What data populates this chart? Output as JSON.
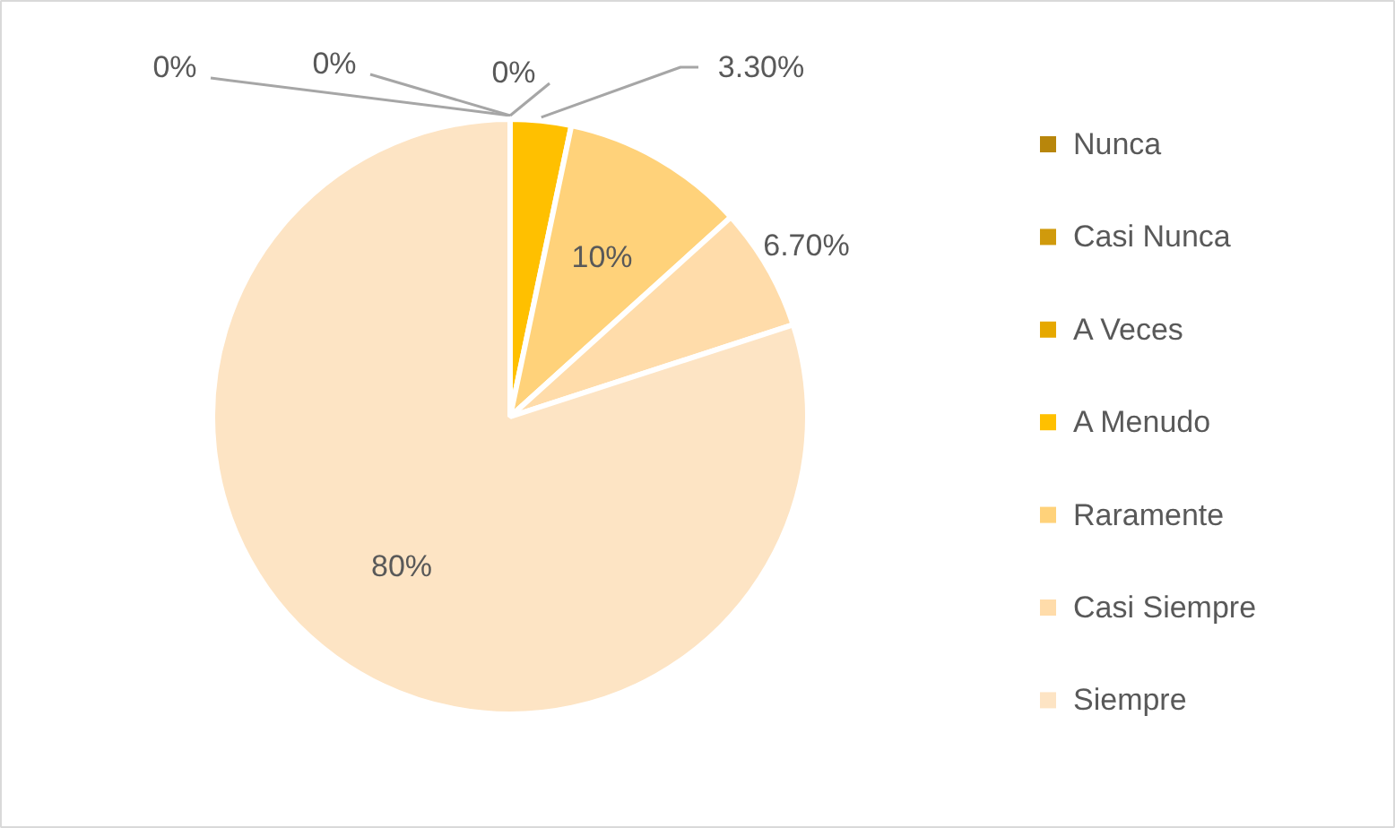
{
  "chart_data": {
    "type": "pie",
    "categories": [
      "Nunca",
      "Casi Nunca",
      "A Veces",
      "A Menudo",
      "Raramente",
      "Casi Siempre",
      "Siempre"
    ],
    "values": [
      0,
      0,
      0,
      3.3,
      10,
      6.7,
      80
    ],
    "colors": [
      "#b8860b",
      "#d09a0c",
      "#e6a800",
      "#ffc000",
      "#ffd27a",
      "#ffdcaa",
      "#fde4c4"
    ],
    "value_labels": [
      "0%",
      "0%",
      "0%",
      "3.30%",
      "10%",
      "6.70%",
      "80%"
    ],
    "legend": "right"
  }
}
